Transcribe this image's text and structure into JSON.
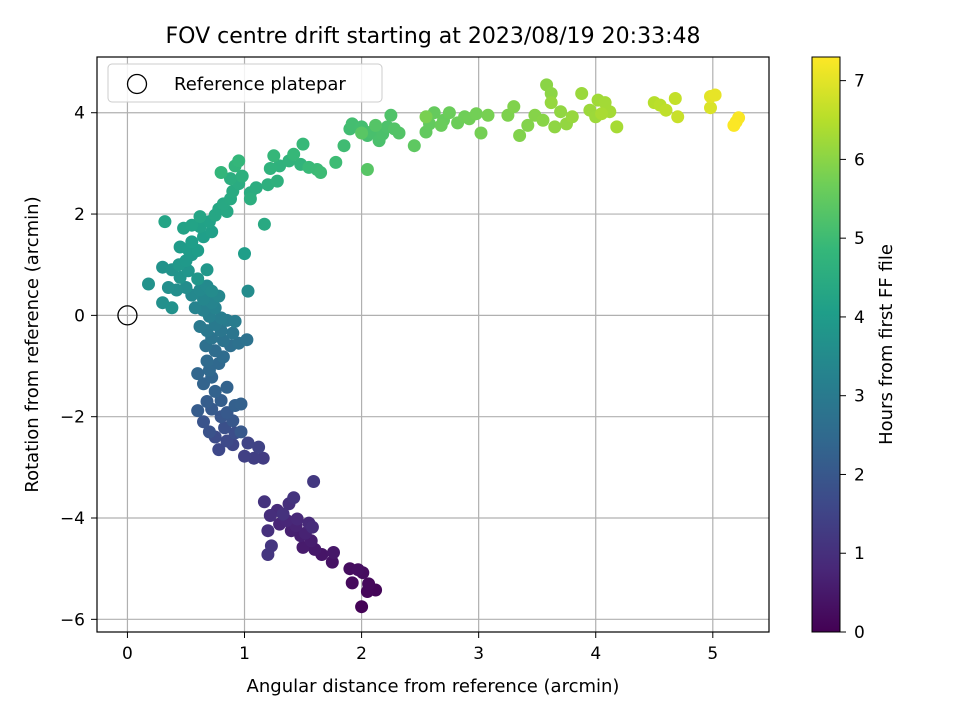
{
  "chart_data": {
    "type": "scatter",
    "title": "FOV centre drift starting at 2023/08/19 20:33:48",
    "xlabel": "Angular distance from reference (arcmin)",
    "ylabel": "Rotation from reference (arcmin)",
    "xlim": [
      -0.26,
      5.48
    ],
    "ylim": [
      -6.25,
      5.1
    ],
    "xticks": [
      0,
      1,
      2,
      3,
      4,
      5
    ],
    "yticks": [
      -6,
      -4,
      -2,
      0,
      2,
      4
    ],
    "grid": true,
    "legend": {
      "position": "top-left",
      "entries": [
        "Reference platepar"
      ]
    },
    "reference_point": {
      "x": 0,
      "y": 0
    },
    "colorbar": {
      "label": "Hours from first FF file",
      "colormap": "viridis",
      "min": 0,
      "max": 7.3,
      "ticks": [
        0,
        1,
        2,
        3,
        4,
        5,
        6,
        7
      ]
    },
    "color_stops": [
      "#440154",
      "#482878",
      "#3e4989",
      "#31688e",
      "#26828e",
      "#1f9e89",
      "#35b779",
      "#6ece58",
      "#b5de2b",
      "#fde725"
    ],
    "series": [
      {
        "points": [
          [
            2.0,
            -5.75,
            0.05
          ],
          [
            2.12,
            -5.42,
            0.1
          ],
          [
            2.05,
            -5.45,
            0.12
          ],
          [
            2.06,
            -5.3,
            0.15
          ],
          [
            1.92,
            -5.28,
            0.18
          ],
          [
            2.01,
            -5.08,
            0.22
          ],
          [
            1.9,
            -5.0,
            0.25
          ],
          [
            1.97,
            -5.02,
            0.28
          ],
          [
            1.75,
            -4.87,
            0.35
          ],
          [
            1.66,
            -4.72,
            0.42
          ],
          [
            1.76,
            -4.68,
            0.45
          ],
          [
            1.6,
            -4.62,
            0.5
          ],
          [
            1.5,
            -4.58,
            0.55
          ],
          [
            1.57,
            -4.45,
            0.58
          ],
          [
            1.48,
            -4.35,
            0.62
          ],
          [
            1.4,
            -4.25,
            0.66
          ],
          [
            1.52,
            -4.3,
            0.7
          ],
          [
            1.44,
            -4.15,
            0.72
          ],
          [
            1.3,
            -4.12,
            0.76
          ],
          [
            1.36,
            -4.05,
            0.8
          ],
          [
            1.45,
            -4.02,
            0.84
          ],
          [
            1.55,
            -4.1,
            0.86
          ],
          [
            1.58,
            -4.18,
            0.9
          ],
          [
            1.28,
            -3.85,
            0.92
          ],
          [
            1.22,
            -3.95,
            0.96
          ],
          [
            1.2,
            -4.25,
            1.0
          ],
          [
            1.38,
            -3.72,
            1.02
          ],
          [
            1.33,
            -3.92,
            1.05
          ],
          [
            1.17,
            -3.68,
            1.08
          ],
          [
            1.42,
            -3.6,
            1.1
          ],
          [
            1.23,
            -4.55,
            1.13
          ],
          [
            1.2,
            -4.72,
            1.15
          ],
          [
            1.59,
            -3.28,
            1.2
          ],
          [
            1.16,
            -2.82,
            1.3
          ],
          [
            1.08,
            -2.82,
            1.35
          ],
          [
            1.0,
            -2.78,
            1.4
          ],
          [
            1.12,
            -2.6,
            1.45
          ],
          [
            1.03,
            -2.52,
            1.5
          ],
          [
            0.9,
            -2.55,
            1.55
          ],
          [
            0.78,
            -2.65,
            1.6
          ],
          [
            0.85,
            -2.48,
            1.65
          ],
          [
            0.75,
            -2.4,
            1.7
          ],
          [
            0.92,
            -2.32,
            1.75
          ],
          [
            0.83,
            -2.22,
            1.8
          ],
          [
            0.7,
            -2.3,
            1.85
          ],
          [
            0.65,
            -2.1,
            1.9
          ],
          [
            0.8,
            -2.0,
            1.95
          ],
          [
            0.9,
            -2.08,
            2.0
          ],
          [
            0.97,
            -2.3,
            2.02
          ],
          [
            0.85,
            -1.92,
            2.05
          ],
          [
            0.72,
            -1.85,
            2.08
          ],
          [
            0.6,
            -1.88,
            2.12
          ],
          [
            0.68,
            -1.7,
            2.15
          ],
          [
            0.8,
            -1.68,
            2.18
          ],
          [
            0.92,
            -1.78,
            2.22
          ],
          [
            0.97,
            -1.75,
            2.25
          ],
          [
            0.75,
            -1.5,
            2.28
          ],
          [
            0.85,
            -1.42,
            2.3
          ],
          [
            0.65,
            -1.35,
            2.33
          ],
          [
            0.72,
            -1.22,
            2.36
          ],
          [
            0.6,
            -1.15,
            2.4
          ],
          [
            0.7,
            -1.08,
            2.45
          ],
          [
            0.78,
            -0.95,
            2.48
          ],
          [
            0.68,
            -0.9,
            2.52
          ],
          [
            0.82,
            -0.82,
            2.55
          ],
          [
            0.75,
            -0.7,
            2.6
          ],
          [
            0.88,
            -0.6,
            2.65
          ],
          [
            0.67,
            -0.6,
            2.68
          ],
          [
            0.95,
            -0.55,
            2.72
          ],
          [
            1.02,
            -0.48,
            2.75
          ],
          [
            0.82,
            -0.5,
            2.78
          ],
          [
            0.72,
            -0.45,
            2.82
          ],
          [
            0.9,
            -0.35,
            2.85
          ],
          [
            0.8,
            -0.3,
            2.88
          ],
          [
            0.68,
            -0.3,
            2.92
          ],
          [
            0.62,
            -0.22,
            2.96
          ],
          [
            0.75,
            -0.18,
            3.0
          ],
          [
            0.85,
            -0.1,
            3.02
          ],
          [
            0.92,
            -0.12,
            3.06
          ],
          [
            0.8,
            -0.05,
            3.1
          ],
          [
            0.7,
            -0.02,
            3.15
          ],
          [
            0.65,
            0.1,
            3.2
          ],
          [
            0.75,
            0.15,
            3.25
          ],
          [
            0.58,
            0.15,
            3.28
          ],
          [
            0.72,
            0.25,
            3.3
          ],
          [
            0.65,
            0.32,
            3.35
          ],
          [
            0.78,
            0.38,
            3.38
          ],
          [
            0.55,
            0.4,
            3.42
          ],
          [
            0.62,
            0.5,
            3.45
          ],
          [
            0.68,
            0.58,
            3.48
          ],
          [
            0.72,
            0.48,
            3.5
          ],
          [
            1.03,
            0.48,
            3.52
          ],
          [
            0.5,
            0.55,
            3.56
          ],
          [
            0.42,
            0.5,
            3.6
          ],
          [
            0.35,
            0.55,
            3.62
          ],
          [
            0.3,
            0.25,
            3.65
          ],
          [
            0.38,
            0.15,
            3.68
          ],
          [
            0.18,
            0.62,
            3.7
          ],
          [
            0.3,
            0.95,
            3.72
          ],
          [
            0.38,
            0.9,
            3.75
          ],
          [
            0.45,
            0.75,
            3.78
          ],
          [
            0.52,
            0.88,
            3.8
          ],
          [
            0.6,
            0.72,
            3.82
          ],
          [
            0.68,
            0.9,
            3.85
          ],
          [
            0.44,
            1.0,
            3.88
          ],
          [
            0.5,
            1.08,
            3.92
          ],
          [
            0.55,
            1.2,
            3.95
          ],
          [
            0.45,
            1.35,
            3.98
          ],
          [
            0.52,
            1.3,
            4.0
          ],
          [
            0.6,
            1.28,
            4.02
          ],
          [
            0.55,
            1.45,
            4.05
          ],
          [
            1.0,
            1.22,
            4.06
          ],
          [
            0.65,
            1.55,
            4.08
          ],
          [
            0.72,
            1.65,
            4.12
          ],
          [
            0.62,
            1.75,
            4.15
          ],
          [
            0.7,
            1.85,
            4.18
          ],
          [
            0.48,
            1.72,
            4.2
          ],
          [
            0.55,
            1.78,
            4.22
          ],
          [
            0.32,
            1.85,
            4.25
          ],
          [
            0.62,
            1.95,
            4.28
          ],
          [
            0.75,
            1.98,
            4.3
          ],
          [
            0.78,
            2.1,
            4.32
          ],
          [
            0.85,
            2.05,
            4.35
          ],
          [
            0.82,
            2.2,
            4.38
          ],
          [
            0.88,
            2.3,
            4.4
          ],
          [
            1.17,
            1.8,
            4.42
          ],
          [
            0.9,
            2.45,
            4.45
          ],
          [
            0.95,
            2.6,
            4.48
          ],
          [
            1.05,
            2.42,
            4.5
          ],
          [
            1.1,
            2.52,
            4.52
          ],
          [
            0.88,
            2.7,
            4.55
          ],
          [
            1.05,
            2.3,
            4.58
          ],
          [
            0.98,
            2.75,
            4.6
          ],
          [
            1.2,
            2.58,
            4.62
          ],
          [
            1.28,
            2.65,
            4.65
          ],
          [
            1.3,
            2.95,
            4.68
          ],
          [
            1.22,
            2.9,
            4.7
          ],
          [
            1.38,
            3.05,
            4.72
          ],
          [
            1.48,
            2.98,
            4.75
          ],
          [
            0.92,
            2.95,
            4.78
          ],
          [
            0.8,
            2.82,
            4.8
          ],
          [
            0.95,
            3.05,
            4.82
          ],
          [
            1.25,
            3.15,
            4.85
          ],
          [
            1.42,
            3.18,
            4.88
          ],
          [
            1.5,
            3.38,
            4.9
          ],
          [
            1.55,
            2.92,
            4.92
          ],
          [
            1.62,
            2.88,
            4.95
          ],
          [
            1.65,
            2.82,
            4.98
          ],
          [
            1.78,
            3.02,
            5.0
          ],
          [
            1.85,
            3.35,
            5.02
          ],
          [
            1.9,
            3.68,
            5.05
          ],
          [
            1.92,
            3.78,
            5.08
          ],
          [
            2.0,
            3.72,
            5.1
          ],
          [
            2.05,
            3.55,
            5.12
          ],
          [
            2.08,
            3.62,
            5.15
          ],
          [
            2.15,
            3.45,
            5.18
          ],
          [
            2.18,
            3.58,
            5.2
          ],
          [
            2.22,
            3.72,
            5.22
          ],
          [
            2.25,
            3.95,
            5.25
          ],
          [
            2.28,
            3.68,
            5.28
          ],
          [
            2.32,
            3.6,
            5.3
          ],
          [
            2.12,
            3.75,
            5.32
          ],
          [
            2.05,
            2.88,
            5.35
          ],
          [
            2.0,
            3.6,
            5.38
          ],
          [
            2.45,
            3.35,
            5.45
          ],
          [
            2.55,
            3.62,
            5.5
          ],
          [
            2.58,
            3.78,
            5.52
          ],
          [
            2.62,
            4.0,
            5.55
          ],
          [
            2.7,
            3.85,
            5.58
          ],
          [
            2.68,
            3.75,
            5.6
          ],
          [
            2.75,
            4.0,
            5.62
          ],
          [
            2.82,
            3.8,
            5.65
          ],
          [
            2.88,
            3.92,
            5.68
          ],
          [
            2.92,
            3.88,
            5.7
          ],
          [
            2.98,
            3.98,
            5.72
          ],
          [
            3.02,
            3.6,
            5.75
          ],
          [
            3.08,
            3.95,
            5.78
          ],
          [
            2.55,
            3.92,
            5.8
          ],
          [
            3.25,
            3.95,
            5.85
          ],
          [
            3.3,
            4.12,
            5.88
          ],
          [
            3.35,
            3.55,
            5.9
          ],
          [
            3.42,
            3.75,
            5.92
          ],
          [
            3.48,
            3.95,
            5.95
          ],
          [
            3.55,
            3.85,
            5.98
          ],
          [
            3.58,
            4.55,
            6.0
          ],
          [
            3.62,
            4.38,
            6.02
          ],
          [
            3.65,
            3.72,
            6.05
          ],
          [
            3.7,
            4.02,
            6.08
          ],
          [
            3.75,
            3.78,
            6.1
          ],
          [
            3.62,
            4.2,
            6.12
          ],
          [
            3.8,
            3.92,
            6.15
          ],
          [
            3.88,
            4.38,
            6.18
          ],
          [
            3.95,
            4.05,
            6.2
          ],
          [
            4.0,
            3.92,
            6.22
          ],
          [
            4.02,
            4.25,
            6.25
          ],
          [
            4.08,
            4.2,
            6.28
          ],
          [
            4.12,
            4.02,
            6.3
          ],
          [
            4.18,
            3.72,
            6.32
          ],
          [
            4.05,
            3.98,
            6.35
          ],
          [
            4.5,
            4.2,
            6.5
          ],
          [
            4.55,
            4.15,
            6.55
          ],
          [
            4.6,
            4.05,
            6.6
          ],
          [
            4.68,
            4.28,
            6.65
          ],
          [
            4.7,
            3.92,
            6.7
          ],
          [
            4.98,
            4.1,
            6.9
          ],
          [
            4.98,
            4.32,
            7.0
          ],
          [
            5.02,
            4.35,
            7.05
          ],
          [
            5.2,
            3.82,
            7.2
          ],
          [
            5.22,
            3.9,
            7.25
          ],
          [
            5.18,
            3.75,
            7.28
          ]
        ]
      }
    ]
  }
}
